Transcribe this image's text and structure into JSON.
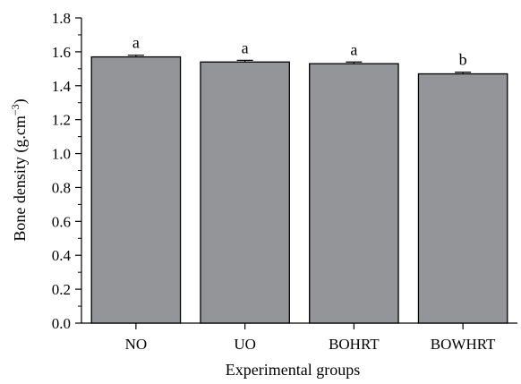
{
  "chart_data": {
    "type": "bar",
    "title": "",
    "xlabel": "Experimental groups",
    "ylabel_main": "Bone density (g.cm",
    "ylabel_exp": "−3",
    "ylabel_close": ")",
    "categories": [
      "NO",
      "UO",
      "BOHRT",
      "BOWHRT"
    ],
    "values": [
      1.57,
      1.54,
      1.53,
      1.47
    ],
    "errors": [
      0.01,
      0.01,
      0.01,
      0.01
    ],
    "significance_letters": [
      "a",
      "a",
      "a",
      "b"
    ],
    "ylim": [
      0,
      1.8
    ],
    "yticks": [
      "0.0",
      "0.2",
      "0.4",
      "0.6",
      "0.8",
      "1.0",
      "1.2",
      "1.4",
      "1.6",
      "1.8"
    ],
    "grid": false,
    "colors": {
      "bar_fill": "#939598",
      "bar_stroke": "#000000",
      "axis": "#000000"
    }
  }
}
